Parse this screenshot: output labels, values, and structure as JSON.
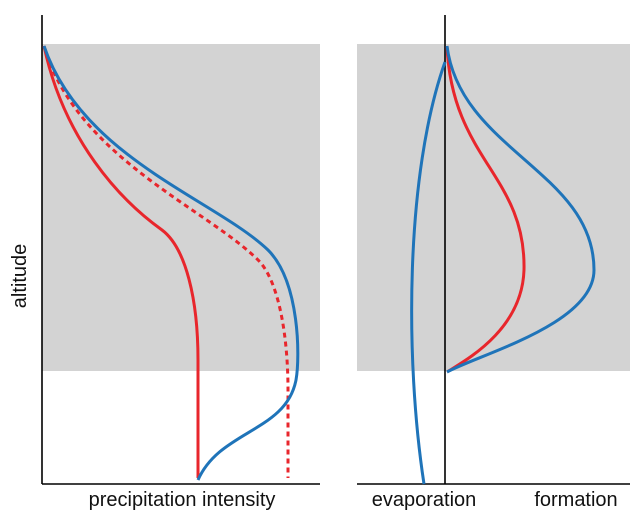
{
  "labels": {
    "y_axis": "altitude",
    "left_x_axis": "precipitation intensity",
    "right_x_left": "evaporation",
    "right_x_right": "formation"
  },
  "colors": {
    "cloud_region": "#d3d3d3",
    "red": "#e8262c",
    "blue": "#1f74b9",
    "axis": "#000000"
  },
  "curves": {
    "left_panel": [
      "red-solid-curve",
      "red-dashed-curve",
      "blue-curve"
    ],
    "right_panel": [
      "blue-evaporation-curve",
      "red-formation-curve",
      "blue-formation-curve"
    ]
  }
}
